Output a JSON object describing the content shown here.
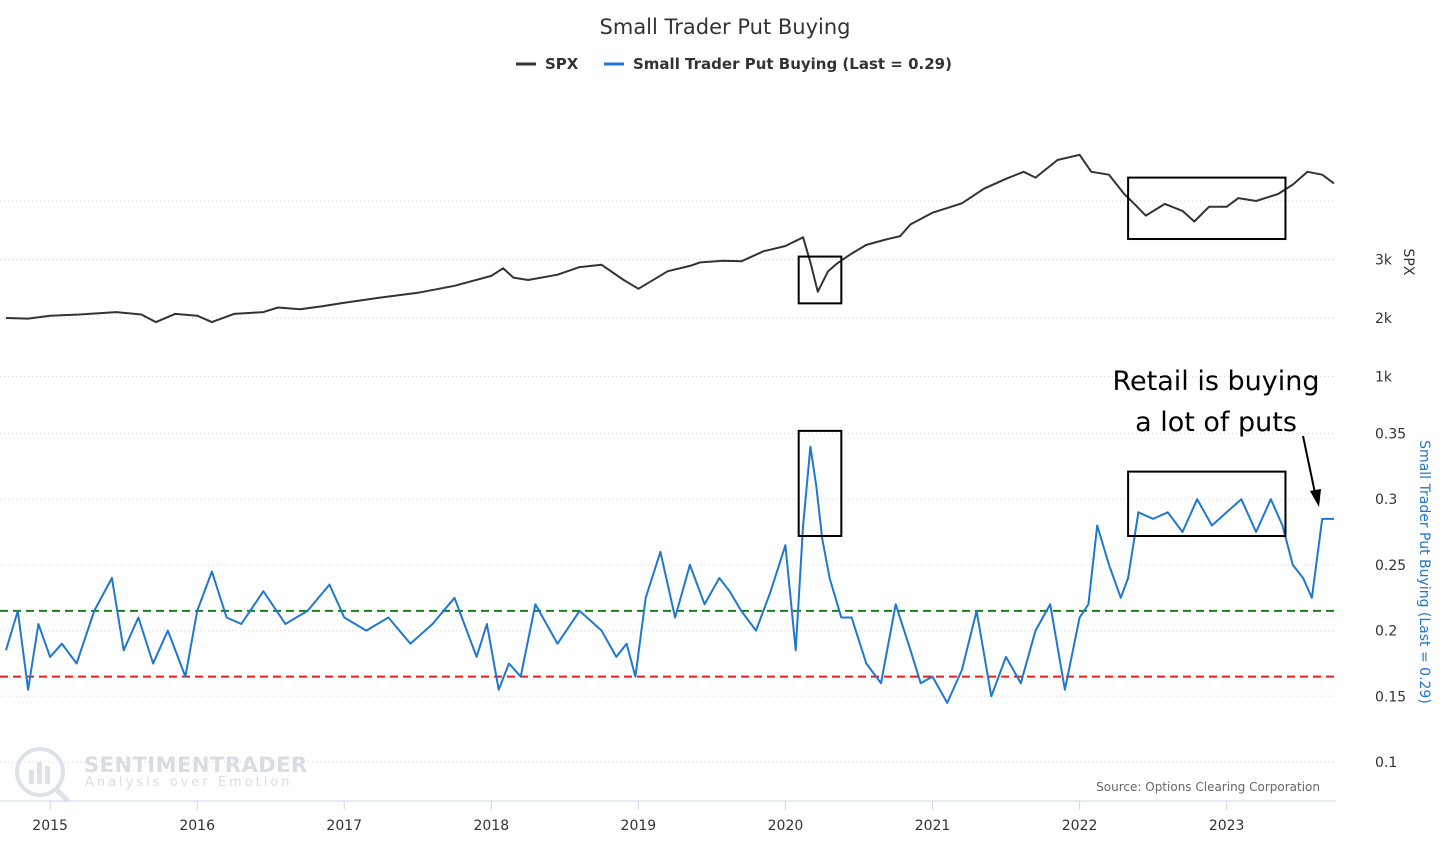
{
  "chart_data": {
    "type": "line",
    "title": "Small Trader Put Buying",
    "legend": [
      {
        "name": "SPX",
        "color": "#333333"
      },
      {
        "name": "Small Trader Put Buying (Last = 0.29)",
        "color": "#1f77d0"
      }
    ],
    "legend_position": "top-center",
    "x_ticks": [
      "2015",
      "2016",
      "2017",
      "2018",
      "2019",
      "2020",
      "2021",
      "2022",
      "2023"
    ],
    "x_range": [
      2014.7,
      2023.73
    ],
    "grid": true,
    "spx_axis": {
      "title": "SPX",
      "ticks": [
        "1k",
        "2k",
        "3k"
      ],
      "tick_values": [
        1000,
        2000,
        3000
      ]
    },
    "put_axis": {
      "title": "Small Trader Put Buying (Last = 0.29)",
      "ticks": [
        "0.1",
        "0.15",
        "0.2",
        "0.25",
        "0.3",
        "0.35"
      ],
      "tick_values": [
        0.1,
        0.15,
        0.2,
        0.25,
        0.3,
        0.35
      ],
      "color": "#1f77d0"
    },
    "series": [
      {
        "name": "SPX",
        "x": [
          2014.7,
          2014.85,
          2015.0,
          2015.2,
          2015.45,
          2015.62,
          2015.72,
          2015.85,
          2016.0,
          2016.1,
          2016.25,
          2016.45,
          2016.55,
          2016.7,
          2016.85,
          2017.0,
          2017.25,
          2017.5,
          2017.75,
          2018.0,
          2018.08,
          2018.15,
          2018.25,
          2018.45,
          2018.6,
          2018.75,
          2018.9,
          2019.0,
          2019.2,
          2019.35,
          2019.42,
          2019.58,
          2019.7,
          2019.85,
          2020.0,
          2020.12,
          2020.17,
          2020.22,
          2020.29,
          2020.35,
          2020.45,
          2020.55,
          2020.68,
          2020.78,
          2020.85,
          2021.0,
          2021.2,
          2021.35,
          2021.5,
          2021.62,
          2021.7,
          2021.85,
          2022.0,
          2022.08,
          2022.2,
          2022.3,
          2022.38,
          2022.45,
          2022.58,
          2022.7,
          2022.78,
          2022.88,
          2023.0,
          2023.08,
          2023.2,
          2023.35,
          2023.45,
          2023.55,
          2023.65,
          2023.73
        ],
        "values": [
          2000,
          1990,
          2040,
          2060,
          2100,
          2060,
          1930,
          2070,
          2040,
          1930,
          2070,
          2100,
          2180,
          2150,
          2200,
          2260,
          2350,
          2430,
          2550,
          2720,
          2850,
          2690,
          2650,
          2740,
          2870,
          2910,
          2650,
          2500,
          2800,
          2890,
          2950,
          2980,
          2970,
          3140,
          3230,
          3380,
          2950,
          2450,
          2800,
          2930,
          3100,
          3250,
          3340,
          3400,
          3600,
          3800,
          3960,
          4210,
          4380,
          4500,
          4400,
          4700,
          4790,
          4500,
          4450,
          4130,
          3930,
          3750,
          3950,
          3830,
          3650,
          3900,
          3900,
          4050,
          4000,
          4120,
          4280,
          4500,
          4450,
          4300
        ]
      },
      {
        "name": "Small Trader Put Buying (Last = 0.29)",
        "x": [
          2014.7,
          2014.78,
          2014.85,
          2014.92,
          2015.0,
          2015.08,
          2015.18,
          2015.3,
          2015.42,
          2015.5,
          2015.6,
          2015.7,
          2015.8,
          2015.92,
          2016.0,
          2016.1,
          2016.2,
          2016.3,
          2016.45,
          2016.6,
          2016.75,
          2016.9,
          2017.0,
          2017.15,
          2017.3,
          2017.45,
          2017.6,
          2017.75,
          2017.9,
          2017.97,
          2018.05,
          2018.12,
          2018.2,
          2018.3,
          2018.45,
          2018.6,
          2018.75,
          2018.85,
          2018.92,
          2018.98,
          2019.05,
          2019.15,
          2019.25,
          2019.35,
          2019.45,
          2019.55,
          2019.62,
          2019.7,
          2019.8,
          2019.9,
          2020.0,
          2020.07,
          2020.12,
          2020.17,
          2020.21,
          2020.25,
          2020.3,
          2020.38,
          2020.45,
          2020.55,
          2020.65,
          2020.75,
          2020.85,
          2020.92,
          2021.0,
          2021.1,
          2021.2,
          2021.3,
          2021.4,
          2021.5,
          2021.6,
          2021.7,
          2021.8,
          2021.9,
          2022.0,
          2022.06,
          2022.12,
          2022.2,
          2022.28,
          2022.33,
          2022.4,
          2022.5,
          2022.6,
          2022.7,
          2022.8,
          2022.9,
          2023.0,
          2023.1,
          2023.2,
          2023.3,
          2023.38,
          2023.45,
          2023.52,
          2023.58,
          2023.65,
          2023.73
        ],
        "values": [
          0.185,
          0.215,
          0.155,
          0.205,
          0.18,
          0.19,
          0.175,
          0.215,
          0.24,
          0.185,
          0.21,
          0.175,
          0.2,
          0.165,
          0.215,
          0.245,
          0.21,
          0.205,
          0.23,
          0.205,
          0.215,
          0.235,
          0.21,
          0.2,
          0.21,
          0.19,
          0.205,
          0.225,
          0.18,
          0.205,
          0.155,
          0.175,
          0.165,
          0.22,
          0.19,
          0.215,
          0.2,
          0.18,
          0.19,
          0.165,
          0.225,
          0.26,
          0.21,
          0.25,
          0.22,
          0.24,
          0.23,
          0.215,
          0.2,
          0.23,
          0.265,
          0.185,
          0.28,
          0.34,
          0.31,
          0.27,
          0.24,
          0.21,
          0.21,
          0.175,
          0.16,
          0.22,
          0.185,
          0.16,
          0.165,
          0.145,
          0.17,
          0.215,
          0.15,
          0.18,
          0.16,
          0.2,
          0.22,
          0.155,
          0.21,
          0.22,
          0.28,
          0.25,
          0.225,
          0.24,
          0.29,
          0.285,
          0.29,
          0.275,
          0.3,
          0.28,
          0.29,
          0.3,
          0.275,
          0.3,
          0.28,
          0.25,
          0.24,
          0.225,
          0.285,
          0.285
        ]
      }
    ],
    "reference_lines": [
      {
        "axis": "put",
        "value": 0.215,
        "color": "#1a7f1a",
        "style": "dashed"
      },
      {
        "axis": "put",
        "value": 0.165,
        "color": "#e02020",
        "style": "dashed"
      }
    ],
    "highlight_boxes": [
      {
        "axis": "spx",
        "x": [
          2020.09,
          2020.38
        ],
        "y": [
          2250,
          3050
        ]
      },
      {
        "axis": "put",
        "x": [
          2020.09,
          2020.38
        ],
        "y": [
          0.272,
          0.352
        ]
      },
      {
        "axis": "spx",
        "x": [
          2022.33,
          2023.4
        ],
        "y": [
          3350,
          4400
        ]
      },
      {
        "axis": "put",
        "x": [
          2022.33,
          2023.4
        ],
        "y": [
          0.272,
          0.321
        ]
      }
    ],
    "annotation": {
      "lines": [
        "Retail is buying",
        "a lot of puts"
      ],
      "arrow_to": {
        "axis": "put",
        "x": 2023.6,
        "y": 0.294
      }
    },
    "source": "Source: Options Clearing Corporation",
    "watermark": {
      "main": "SENTIMENTRADER",
      "sub": "Analysis over Emotion"
    }
  }
}
